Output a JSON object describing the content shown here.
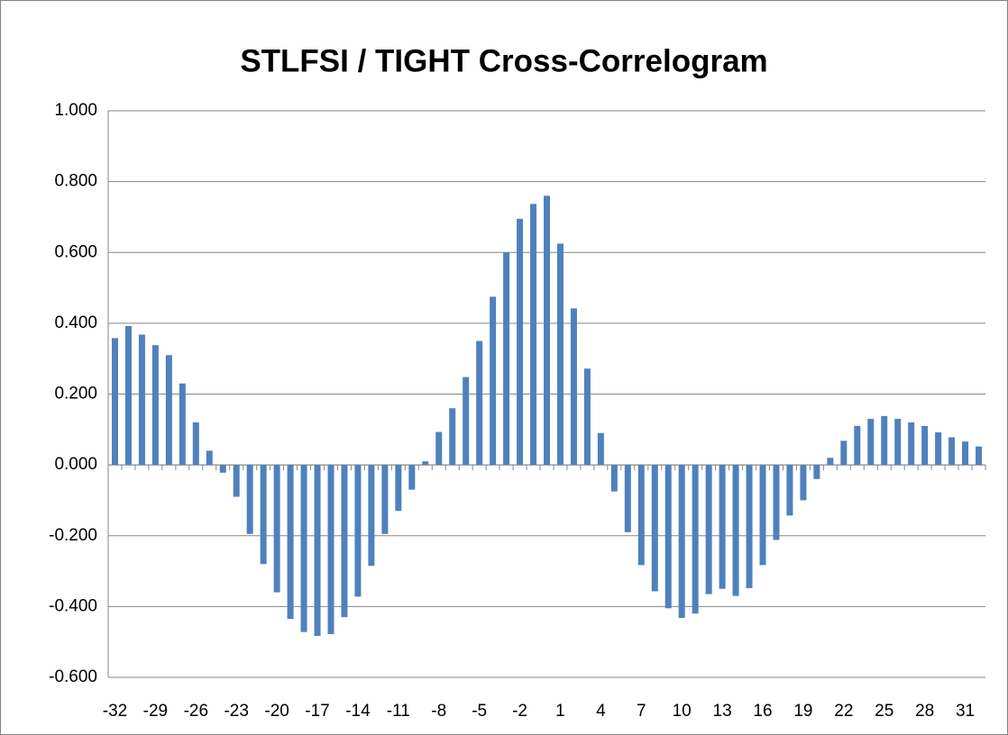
{
  "chart_data": {
    "type": "bar",
    "title": "STLFSI / TIGHT Cross-Correlogram",
    "categories": [
      "-32",
      null,
      null,
      "-29",
      null,
      null,
      "-26",
      null,
      null,
      "-23",
      null,
      null,
      "-20",
      null,
      null,
      "-17",
      null,
      null,
      "-14",
      null,
      null,
      "-11",
      null,
      null,
      "-8",
      null,
      null,
      "-5",
      null,
      null,
      "-2",
      null,
      null,
      "1",
      null,
      null,
      "4",
      null,
      null,
      "7",
      null,
      null,
      "10",
      null,
      null,
      "13",
      null,
      null,
      "16",
      null,
      null,
      "19",
      null,
      null,
      "22",
      null,
      null,
      "25",
      null,
      null,
      "28",
      null,
      null,
      "31",
      null
    ],
    "values": [
      0.358,
      0.392,
      0.368,
      0.338,
      0.31,
      0.23,
      0.12,
      0.04,
      -0.022,
      -0.09,
      -0.195,
      -0.28,
      -0.36,
      -0.435,
      -0.472,
      -0.483,
      -0.478,
      -0.43,
      -0.372,
      -0.285,
      -0.195,
      -0.13,
      -0.07,
      0.01,
      0.093,
      0.16,
      0.248,
      0.35,
      0.475,
      0.6,
      0.695,
      0.737,
      0.76,
      0.625,
      0.442,
      0.272,
      0.09,
      -0.075,
      -0.19,
      -0.283,
      -0.357,
      -0.405,
      -0.432,
      -0.42,
      -0.365,
      -0.35,
      -0.37,
      -0.348,
      -0.283,
      -0.212,
      -0.143,
      -0.1,
      -0.04,
      0.02,
      0.068,
      0.11,
      0.13,
      0.138,
      0.13,
      0.12,
      0.11,
      0.092,
      0.078,
      0.066,
      0.052
    ],
    "color": "#4f81bd",
    "ylim": [
      -0.6,
      1.0
    ],
    "yticks": [
      {
        "value": -0.6,
        "label": "-0.600"
      },
      {
        "value": -0.4,
        "label": "-0.400"
      },
      {
        "value": -0.2,
        "label": "-0.200"
      },
      {
        "value": 0,
        "label": "0.000"
      },
      {
        "value": 0.2,
        "label": "0.200"
      },
      {
        "value": 0.4,
        "label": "0.400"
      },
      {
        "value": 0.6,
        "label": "0.600"
      },
      {
        "value": 0.8,
        "label": "0.800"
      },
      {
        "value": 1.0,
        "label": "1.000"
      }
    ],
    "grid": true
  }
}
